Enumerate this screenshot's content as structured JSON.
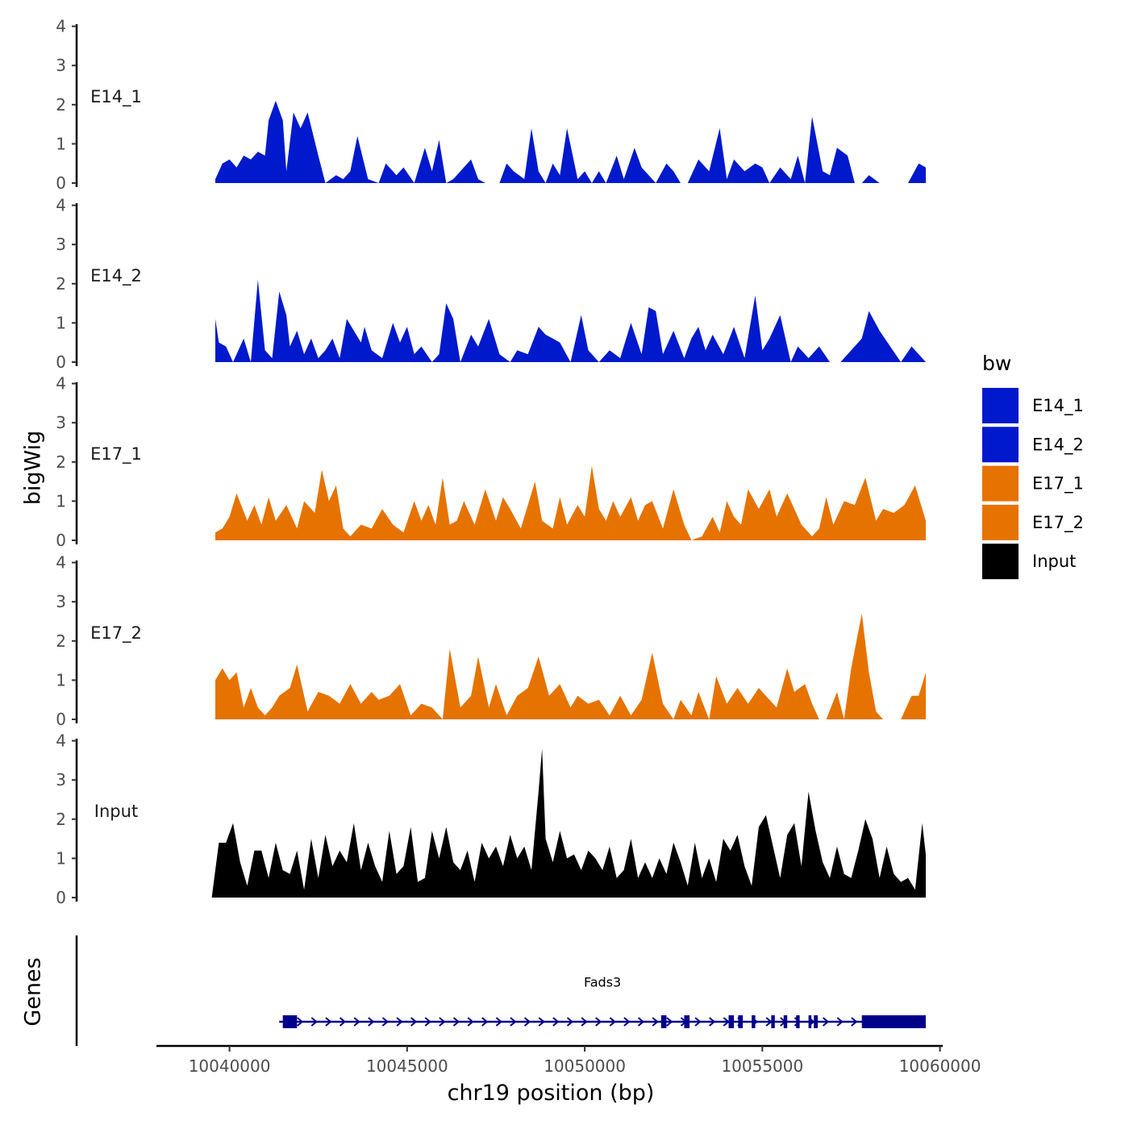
{
  "chart_data": {
    "type": "area",
    "title": "",
    "ylabel": "bigWig",
    "gene_track_label": "Genes",
    "xlabel": "chr19 position (bp)",
    "xlim": [
      10038000,
      10061000
    ],
    "xticks": [
      10040000,
      10045000,
      10050000,
      10055000,
      10060000
    ],
    "xtick_labels": [
      "10040000",
      "10045000",
      "10050000",
      "10055000",
      "10060000"
    ],
    "ylim": [
      0,
      4
    ],
    "yticks": [
      0,
      1,
      2,
      3,
      4
    ],
    "ytick_labels": [
      "0",
      "1",
      "2",
      "3",
      "4"
    ],
    "legend": {
      "title": "bw",
      "placement": "right",
      "entries": [
        {
          "label": "E14_1",
          "color": "#0019CC"
        },
        {
          "label": "E14_2",
          "color": "#0019CC"
        },
        {
          "label": "E17_1",
          "color": "#E67300"
        },
        {
          "label": "E17_2",
          "color": "#E67300"
        },
        {
          "label": "Input",
          "color": "#000000"
        }
      ]
    },
    "series": [
      {
        "name": "E14_1",
        "color": "#0019CC",
        "x": [
          10039600,
          10039800,
          10040000,
          10040200,
          10040400,
          10040600,
          10040800,
          10041000,
          10041100,
          10041300,
          10041500,
          10041600,
          10041800,
          10042000,
          10042100,
          10042200,
          10042500,
          10042700,
          10043000,
          10043200,
          10043400,
          10043600,
          10043900,
          10044200,
          10044400,
          10044700,
          10044900,
          10045200,
          10045500,
          10045700,
          10045900,
          10046100,
          10046300,
          10046500,
          10046800,
          10047000,
          10047200,
          10047600,
          10047800,
          10048000,
          10048300,
          10048500,
          10048700,
          10048900,
          10049100,
          10049300,
          10049500,
          10049800,
          10050000,
          10050200,
          10050400,
          10050600,
          10050900,
          10051100,
          10051400,
          10051600,
          10051800,
          10052000,
          10052300,
          10052500,
          10052700,
          10052900,
          10053200,
          10053500,
          10053800,
          10054000,
          10054200,
          10054500,
          10054800,
          10055000,
          10055200,
          10055500,
          10055800,
          10056000,
          10056200,
          10056400,
          10056700,
          10056900,
          10057100,
          10057400,
          10057600,
          10057800,
          10058000,
          10058300,
          10058600,
          10058800,
          10059100,
          10059400,
          10059600
        ],
        "values": [
          0.1,
          0.5,
          0.6,
          0.4,
          0.7,
          0.6,
          0.8,
          0.7,
          1.6,
          2.1,
          1.6,
          0.3,
          1.8,
          1.4,
          1.6,
          1.8,
          0.7,
          0,
          0.2,
          0.1,
          0.3,
          1.2,
          0.1,
          0,
          0.5,
          0.2,
          0.4,
          0,
          0.9,
          0.3,
          1.1,
          0,
          0.1,
          0.3,
          0.6,
          0.1,
          0,
          0,
          0.5,
          0.3,
          0.1,
          1.4,
          0.3,
          0,
          0.5,
          0.2,
          1.4,
          0.1,
          0.3,
          0,
          0.3,
          0,
          0.7,
          0.1,
          0.9,
          0.4,
          0.2,
          0,
          0.5,
          0.3,
          0,
          0,
          0.6,
          0.3,
          1.4,
          0.1,
          0.6,
          0.3,
          0.5,
          0.4,
          0,
          0.4,
          0.1,
          0.7,
          0,
          1.7,
          0.3,
          0.2,
          0.9,
          0.7,
          0,
          0,
          0.2,
          0,
          0,
          0,
          0,
          0.5,
          0.4
        ]
      },
      {
        "name": "E14_2",
        "color": "#0019CC",
        "x": [
          10039600,
          10039700,
          10039900,
          10040100,
          10040400,
          10040600,
          10040800,
          10041000,
          10041200,
          10041400,
          10041600,
          10041700,
          10041900,
          10042100,
          10042300,
          10042500,
          10042700,
          10042900,
          10043100,
          10043300,
          10043500,
          10043700,
          10043800,
          10044000,
          10044300,
          10044600,
          10044800,
          10045000,
          10045200,
          10045400,
          10045700,
          10045900,
          10046100,
          10046300,
          10046500,
          10046800,
          10047000,
          10047300,
          10047600,
          10047900,
          10048100,
          10048400,
          10048700,
          10048900,
          10049100,
          10049300,
          10049600,
          10049900,
          10050100,
          10050400,
          10050700,
          10051000,
          10051300,
          10051600,
          10051800,
          10052000,
          10052200,
          10052500,
          10052800,
          10053000,
          10053200,
          10053400,
          10053600,
          10053900,
          10054200,
          10054500,
          10054800,
          10055000,
          10055200,
          10055500,
          10055800,
          10056000,
          10056300,
          10056600,
          10056900,
          10057200,
          10057500,
          10057800,
          10058000,
          10058300,
          10058600,
          10058900,
          10059200,
          10059500,
          10059600
        ],
        "values": [
          1.1,
          0.5,
          0.4,
          0,
          0.6,
          0,
          2.1,
          0.3,
          0.1,
          1.8,
          1.2,
          0.4,
          0.8,
          0.2,
          0.6,
          0.1,
          0.3,
          0.6,
          0.1,
          1.1,
          0.8,
          0.5,
          0.9,
          0.3,
          0.1,
          1.0,
          0.5,
          0.9,
          0.2,
          0.4,
          0,
          0.2,
          1.5,
          1.1,
          0,
          0.7,
          0.4,
          1.1,
          0.2,
          0,
          0.3,
          0.2,
          0.9,
          0.7,
          0.6,
          0.5,
          0,
          1.2,
          0.3,
          0,
          0.3,
          0.1,
          1.0,
          0.2,
          1.4,
          1.3,
          0.2,
          0.8,
          0.1,
          0.6,
          0.9,
          0.3,
          0.7,
          0.2,
          0.9,
          0.1,
          1.7,
          0.3,
          0.6,
          1.2,
          0,
          0.4,
          0.1,
          0.4,
          0,
          0,
          0.3,
          0.6,
          1.3,
          0.8,
          0.4,
          0,
          0.4,
          0.1,
          0
        ]
      },
      {
        "name": "E17_1",
        "color": "#E67300",
        "x": [
          10039600,
          10039800,
          10040000,
          10040200,
          10040500,
          10040700,
          10040900,
          10041100,
          10041300,
          10041600,
          10041900,
          10042100,
          10042400,
          10042600,
          10042800,
          10043000,
          10043200,
          10043400,
          10043700,
          10044000,
          10044300,
          10044600,
          10044900,
          10045200,
          10045400,
          10045600,
          10045800,
          10046000,
          10046200,
          10046400,
          10046600,
          10046900,
          10047200,
          10047500,
          10047700,
          10047900,
          10048200,
          10048400,
          10048600,
          10048800,
          10049100,
          10049300,
          10049500,
          10049800,
          10050000,
          10050200,
          10050400,
          10050600,
          10050800,
          10051000,
          10051300,
          10051500,
          10051700,
          10051900,
          10052200,
          10052500,
          10052800,
          10053000,
          10053300,
          10053600,
          10053800,
          10054000,
          10054200,
          10054400,
          10054600,
          10054900,
          10055200,
          10055400,
          10055700,
          10055900,
          10056100,
          10056400,
          10056600,
          10056800,
          10057000,
          10057300,
          10057600,
          10057900,
          10058200,
          10058400,
          10058700,
          10059000,
          10059300,
          10059600
        ],
        "values": [
          0.2,
          0.3,
          0.6,
          1.2,
          0.5,
          0.9,
          0.4,
          1.1,
          0.5,
          0.9,
          0.3,
          1.0,
          0.7,
          1.8,
          1.0,
          1.4,
          0.3,
          0.1,
          0.4,
          0.3,
          0.8,
          0.4,
          0.2,
          1.0,
          0.5,
          0.9,
          0.4,
          1.6,
          0.4,
          0.5,
          1.0,
          0.4,
          1.3,
          0.5,
          1.1,
          0.8,
          0.3,
          0.9,
          1.5,
          0.5,
          0.3,
          1.1,
          0.4,
          0.9,
          0.6,
          1.9,
          0.8,
          0.5,
          1.0,
          0.6,
          1.1,
          0.5,
          0.9,
          1.0,
          0.3,
          1.3,
          0.4,
          0,
          0.1,
          0.6,
          0.2,
          1.0,
          0.6,
          0.4,
          1.3,
          0.8,
          1.3,
          0.6,
          1.2,
          0.8,
          0.4,
          0.1,
          0.3,
          1.1,
          0.4,
          1.0,
          0.9,
          1.6,
          0.5,
          0.8,
          0.7,
          0.9,
          1.4,
          0.5
        ]
      },
      {
        "name": "E17_2",
        "color": "#E67300",
        "x": [
          10039600,
          10039800,
          10040000,
          10040200,
          10040400,
          10040600,
          10040800,
          10041000,
          10041200,
          10041400,
          10041700,
          10041900,
          10042200,
          10042500,
          10042800,
          10043100,
          10043400,
          10043700,
          10044000,
          10044200,
          10044500,
          10044800,
          10045100,
          10045400,
          10045700,
          10046000,
          10046200,
          10046500,
          10046800,
          10047000,
          10047300,
          10047500,
          10047800,
          10048100,
          10048400,
          10048700,
          10049000,
          10049300,
          10049600,
          10049800,
          10050100,
          10050400,
          10050700,
          10051000,
          10051300,
          10051600,
          10051900,
          10052200,
          10052500,
          10052700,
          10053000,
          10053200,
          10053500,
          10053700,
          10054000,
          10054300,
          10054600,
          10054900,
          10055200,
          10055400,
          10055700,
          10055900,
          10056200,
          10056400,
          10056600,
          10056800,
          10057100,
          10057300,
          10057500,
          10057800,
          10058000,
          10058200,
          10058400,
          10058600,
          10058900,
          10059200,
          10059400,
          10059600
        ],
        "values": [
          1.0,
          1.3,
          1.0,
          1.2,
          0.3,
          0.8,
          0.3,
          0.1,
          0.3,
          0.6,
          0.8,
          1.4,
          0.2,
          0.7,
          0.6,
          0.4,
          0.9,
          0.4,
          0.7,
          0.5,
          0.6,
          0.9,
          0.1,
          0.4,
          0.3,
          0,
          1.8,
          0.3,
          0.6,
          1.6,
          0.3,
          0.9,
          0.1,
          0.6,
          0.8,
          1.6,
          0.6,
          0.9,
          0.3,
          0.6,
          0.4,
          0.5,
          0.1,
          0.6,
          0.1,
          0.5,
          1.7,
          0.4,
          0,
          0.5,
          0.1,
          0.7,
          0,
          1.1,
          0.4,
          0.8,
          0.4,
          0.8,
          0.5,
          0.3,
          1.3,
          0.7,
          0.9,
          0.4,
          0,
          0,
          0.7,
          0,
          1.3,
          2.7,
          1.2,
          0.2,
          0,
          0,
          0,
          0.6,
          0.6,
          1.2
        ]
      },
      {
        "name": "Input",
        "color": "#000000",
        "x": [
          10039500,
          10039700,
          10039900,
          10040100,
          10040300,
          10040500,
          10040700,
          10040900,
          10041100,
          10041300,
          10041500,
          10041700,
          10041900,
          10042100,
          10042300,
          10042500,
          10042700,
          10042900,
          10043100,
          10043300,
          10043500,
          10043700,
          10043900,
          10044100,
          10044300,
          10044500,
          10044700,
          10044900,
          10045100,
          10045300,
          10045500,
          10045700,
          10045900,
          10046100,
          10046300,
          10046500,
          10046700,
          10046900,
          10047100,
          10047300,
          10047500,
          10047700,
          10047900,
          10048100,
          10048300,
          10048500,
          10048700,
          10048800,
          10048900,
          10049100,
          10049300,
          10049500,
          10049700,
          10049900,
          10050100,
          10050300,
          10050500,
          10050700,
          10050900,
          10051100,
          10051300,
          10051500,
          10051700,
          10051900,
          10052100,
          10052300,
          10052500,
          10052700,
          10052900,
          10053100,
          10053300,
          10053500,
          10053700,
          10053900,
          10054100,
          10054300,
          10054500,
          10054700,
          10054900,
          10055100,
          10055300,
          10055500,
          10055700,
          10055900,
          10056100,
          10056300,
          10056500,
          10056700,
          10056900,
          10057100,
          10057300,
          10057500,
          10057700,
          10057900,
          10058100,
          10058300,
          10058500,
          10058700,
          10058900,
          10059100,
          10059300,
          10059500,
          10059600
        ],
        "values": [
          0,
          1.4,
          1.4,
          1.9,
          0.9,
          0.3,
          1.2,
          1.2,
          0.5,
          1.4,
          0.7,
          0.6,
          1.2,
          0.2,
          1.5,
          0.5,
          1.6,
          0.8,
          1.2,
          0.9,
          1.9,
          0.7,
          1.4,
          0.8,
          0.4,
          1.7,
          0.6,
          0.8,
          1.8,
          0.4,
          0.5,
          1.7,
          1.0,
          1.8,
          0.9,
          0.7,
          1.2,
          0.4,
          1.4,
          1.0,
          1.3,
          0.8,
          1.6,
          1.0,
          1.3,
          0.7,
          2.7,
          3.8,
          1.5,
          0.9,
          1.7,
          1.0,
          1.1,
          0.7,
          1.2,
          1.0,
          0.7,
          1.3,
          0.5,
          0.7,
          1.5,
          0.5,
          0.9,
          0.5,
          1.0,
          0.6,
          1.4,
          0.9,
          0.3,
          1.4,
          0.5,
          1.0,
          0.4,
          1.5,
          1.2,
          1.6,
          0.8,
          0.3,
          1.8,
          2.1,
          1.3,
          0.5,
          1.6,
          1.9,
          0.8,
          2.7,
          1.7,
          0.9,
          0.5,
          1.3,
          0.6,
          0.5,
          1.2,
          2.0,
          1.5,
          0.5,
          1.3,
          0.6,
          0.4,
          0.5,
          0.2,
          1.9,
          1.1
        ]
      }
    ],
    "gene_track": {
      "gene_name": "Fads3",
      "start": 10041400,
      "end": 10059600,
      "strand": "+",
      "color": "#00008B",
      "exons": [
        [
          10041500,
          10041900
        ],
        [
          10052150,
          10052300
        ],
        [
          10052800,
          10052950
        ],
        [
          10054050,
          10054200
        ],
        [
          10054320,
          10054450
        ],
        [
          10054700,
          10054800
        ],
        [
          10055250,
          10055350
        ],
        [
          10055600,
          10055700
        ],
        [
          10055950,
          10056050
        ],
        [
          10056300,
          10056380
        ],
        [
          10056450,
          10056560
        ],
        [
          10057800,
          10059600
        ]
      ]
    }
  }
}
